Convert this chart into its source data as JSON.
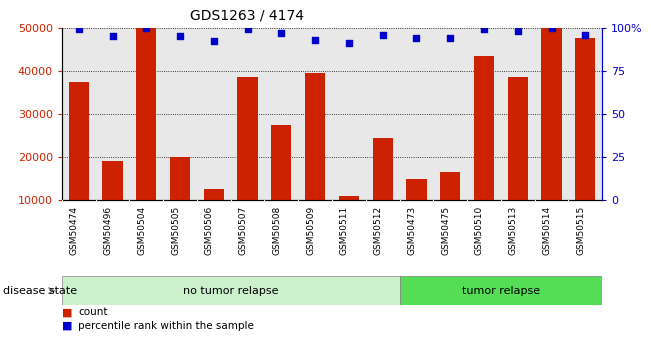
{
  "title": "GDS1263 / 4174",
  "samples": [
    "GSM50474",
    "GSM50496",
    "GSM50504",
    "GSM50505",
    "GSM50506",
    "GSM50507",
    "GSM50508",
    "GSM50509",
    "GSM50511",
    "GSM50512",
    "GSM50473",
    "GSM50475",
    "GSM50510",
    "GSM50513",
    "GSM50514",
    "GSM50515"
  ],
  "counts": [
    37500,
    19000,
    50000,
    20000,
    12500,
    38500,
    27500,
    39500,
    11000,
    24500,
    15000,
    16500,
    43500,
    38500,
    50000,
    47500
  ],
  "percentiles": [
    99,
    95,
    100,
    95,
    92,
    99,
    97,
    93,
    91,
    96,
    94,
    94,
    99,
    98,
    100,
    96
  ],
  "group_labels": [
    "no tumor relapse",
    "tumor relapse"
  ],
  "group_split": 10,
  "group_colors": [
    "#ccf0cc",
    "#55dd55"
  ],
  "bar_color": "#cc2200",
  "dot_color": "#0000cc",
  "ylim_left": [
    10000,
    50000
  ],
  "ylim_right": [
    0,
    100
  ],
  "left_yticks": [
    10000,
    20000,
    30000,
    40000,
    50000
  ],
  "right_yticks": [
    0,
    25,
    50,
    75,
    100
  ],
  "right_yticklabels": [
    "0",
    "25",
    "50",
    "75",
    "100%"
  ],
  "bar_width": 0.6,
  "background_color": "#ffffff",
  "plot_bg_color": "#e8e8e8",
  "xtick_bg_color": "#d8d8d8"
}
